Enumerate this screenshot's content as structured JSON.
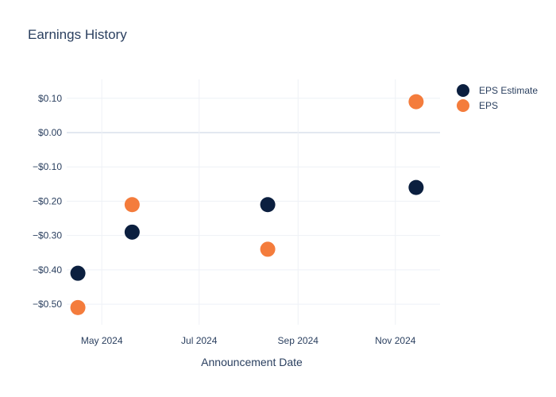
{
  "chart_data": {
    "type": "scatter",
    "title": "Earnings History",
    "xlabel": "Announcement Date",
    "ylabel": "",
    "x_ticks": [
      {
        "date": "2024-05-01",
        "label": "May 2024"
      },
      {
        "date": "2024-07-01",
        "label": "Jul 2024"
      },
      {
        "date": "2024-09-01",
        "label": "Sep 2024"
      },
      {
        "date": "2024-11-01",
        "label": "Nov 2024"
      }
    ],
    "y_ticks": [
      {
        "value": 0.1,
        "label": "$0.10"
      },
      {
        "value": 0.0,
        "label": "$0.00"
      },
      {
        "value": -0.1,
        "label": "−$0.10"
      },
      {
        "value": -0.2,
        "label": "−$0.20"
      },
      {
        "value": -0.3,
        "label": "−$0.30"
      },
      {
        "value": -0.4,
        "label": "−$0.40"
      },
      {
        "value": -0.5,
        "label": "−$0.50"
      }
    ],
    "xlim": [
      "2024-04-09",
      "2024-11-29"
    ],
    "ylim": [
      -0.56,
      0.155
    ],
    "grid": true,
    "legend_position": "top-right",
    "series": [
      {
        "name": "EPS Estimate",
        "color": "#0b1f3f",
        "points": [
          {
            "x": "2024-04-16",
            "y": -0.41
          },
          {
            "x": "2024-05-20",
            "y": -0.29
          },
          {
            "x": "2024-08-13",
            "y": -0.21
          },
          {
            "x": "2024-11-14",
            "y": -0.16
          }
        ]
      },
      {
        "name": "EPS",
        "color": "#f47c3c",
        "points": [
          {
            "x": "2024-04-16",
            "y": -0.51
          },
          {
            "x": "2024-05-20",
            "y": -0.21
          },
          {
            "x": "2024-08-13",
            "y": -0.34
          },
          {
            "x": "2024-11-14",
            "y": 0.09
          }
        ]
      }
    ]
  }
}
